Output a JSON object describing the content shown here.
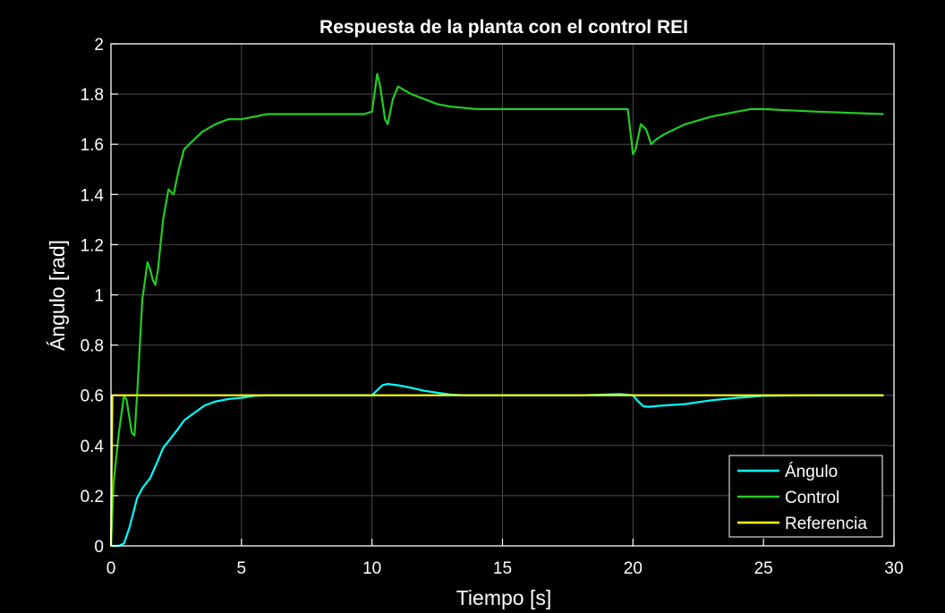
{
  "chart_data": {
    "type": "line",
    "title": "Respuesta de la planta con el control REI",
    "xlabel": "Tiempo [s]",
    "ylabel": "Ángulo [rad]",
    "xlim": [
      0,
      30
    ],
    "ylim": [
      0,
      2
    ],
    "x_ticks": [
      "0",
      "5",
      "10",
      "15",
      "20",
      "25",
      "30"
    ],
    "y_ticks": [
      "0",
      "0.2",
      "0.4",
      "0.6",
      "0.8",
      "1",
      "1.2",
      "1.4",
      "1.6",
      "1.8",
      "2"
    ],
    "x_tick_values": [
      0,
      5,
      10,
      15,
      20,
      25,
      30
    ],
    "y_tick_values": [
      0,
      0.2,
      0.4,
      0.6,
      0.8,
      1,
      1.2,
      1.4,
      1.6,
      1.8,
      2
    ],
    "grid": true,
    "legend_position": "bottom-right",
    "background": "#000000",
    "axes_color": "#ffffff",
    "grid_color": "#4a4a4a",
    "series": [
      {
        "name": "Ángulo",
        "color": "#00ffff",
        "x": [
          0,
          0.3,
          0.5,
          0.7,
          0.9,
          1.0,
          1.2,
          1.5,
          1.8,
          2.0,
          2.3,
          2.6,
          2.8,
          3.2,
          3.6,
          4.0,
          4.5,
          5.0,
          5.5,
          6.0,
          7.0,
          8.0,
          9.0,
          10.0,
          10.2,
          10.4,
          10.6,
          11.0,
          11.5,
          12.0,
          12.5,
          13.0,
          13.5,
          14.0,
          16.0,
          18.0,
          19.5,
          20.0,
          20.2,
          20.4,
          20.6,
          21.0,
          22.0,
          23.0,
          24.0,
          25.0,
          27.0,
          29.6
        ],
        "y": [
          0,
          0,
          0.01,
          0.07,
          0.15,
          0.19,
          0.23,
          0.27,
          0.34,
          0.39,
          0.43,
          0.47,
          0.5,
          0.53,
          0.56,
          0.575,
          0.585,
          0.59,
          0.598,
          0.6,
          0.6,
          0.6,
          0.6,
          0.6,
          0.62,
          0.64,
          0.645,
          0.64,
          0.63,
          0.618,
          0.61,
          0.603,
          0.6,
          0.6,
          0.6,
          0.6,
          0.605,
          0.6,
          0.575,
          0.556,
          0.554,
          0.558,
          0.565,
          0.58,
          0.59,
          0.598,
          0.6,
          0.6
        ]
      },
      {
        "name": "Control",
        "color": "#22cc22",
        "x": [
          0,
          0.1,
          0.3,
          0.5,
          0.6,
          0.8,
          0.9,
          1.0,
          1.2,
          1.4,
          1.5,
          1.6,
          1.7,
          1.8,
          2.0,
          2.2,
          2.4,
          2.6,
          2.8,
          3.0,
          3.5,
          4.0,
          4.5,
          5.0,
          5.5,
          6.0,
          7.0,
          8.0,
          9.0,
          9.7,
          10.0,
          10.2,
          10.3,
          10.5,
          10.6,
          10.8,
          11.0,
          11.5,
          12.0,
          12.5,
          13.0,
          14.0,
          15.0,
          17.0,
          19.0,
          19.8,
          20.0,
          20.1,
          20.3,
          20.5,
          20.7,
          20.9,
          21.2,
          22.0,
          23.0,
          24.0,
          24.5,
          25.0,
          27.0,
          29.6
        ],
        "y": [
          0,
          0.25,
          0.45,
          0.6,
          0.58,
          0.45,
          0.44,
          0.6,
          0.98,
          1.13,
          1.1,
          1.06,
          1.04,
          1.1,
          1.3,
          1.42,
          1.4,
          1.5,
          1.58,
          1.6,
          1.65,
          1.68,
          1.7,
          1.7,
          1.71,
          1.72,
          1.72,
          1.72,
          1.72,
          1.72,
          1.73,
          1.88,
          1.84,
          1.7,
          1.68,
          1.78,
          1.83,
          1.8,
          1.78,
          1.76,
          1.75,
          1.74,
          1.74,
          1.74,
          1.74,
          1.74,
          1.56,
          1.58,
          1.68,
          1.66,
          1.6,
          1.62,
          1.64,
          1.68,
          1.71,
          1.73,
          1.74,
          1.74,
          1.73,
          1.72
        ]
      },
      {
        "name": "Referencia",
        "color": "#ffff00",
        "x": [
          0,
          0.05,
          29.6
        ],
        "y": [
          0,
          0.6,
          0.6
        ]
      }
    ]
  }
}
